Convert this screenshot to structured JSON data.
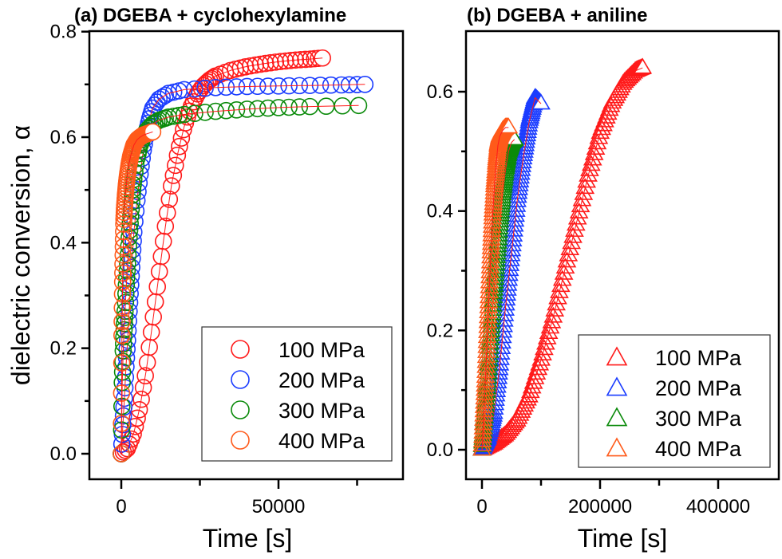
{
  "chart_data": [
    {
      "id": "a",
      "type": "scatter",
      "title": "(a) DGEBA + cyclohexylamine",
      "xlabel": "Time [s]",
      "ylabel": "dielectric conversion, α",
      "xlim": [
        -20000,
        90000
      ],
      "ylim": [
        -0.025,
        0.8
      ],
      "xticks": [
        0,
        50000
      ],
      "xtick_labels": [
        "0",
        "50000"
      ],
      "xminor_ticks": [
        25000,
        75000
      ],
      "yticks": [
        0.0,
        0.2,
        0.4,
        0.6,
        0.8
      ],
      "ytick_labels": [
        "0.0",
        "0.2",
        "0.4",
        "0.6",
        "0.8"
      ],
      "yminor_ticks": [
        0.1,
        0.3,
        0.5,
        0.7
      ],
      "marker": "circle",
      "legend_position": "bottom-right",
      "grid": false,
      "series": [
        {
          "name": "100 MPa",
          "color": "#ff1a1a",
          "x": [
            0,
            2000,
            4000,
            6000,
            8000,
            10000,
            12000,
            14000,
            16000,
            18000,
            20000,
            22000,
            24000,
            26000,
            28000,
            30000,
            35000,
            40000,
            45000,
            50000,
            55000,
            60000,
            64000
          ],
          "y": [
            0.0,
            0.01,
            0.04,
            0.09,
            0.16,
            0.25,
            0.34,
            0.43,
            0.51,
            0.57,
            0.62,
            0.655,
            0.68,
            0.697,
            0.708,
            0.716,
            0.727,
            0.734,
            0.739,
            0.743,
            0.746,
            0.748,
            0.75
          ]
        },
        {
          "name": "200 MPa",
          "color": "#1a3cff",
          "x": [
            0,
            500,
            1000,
            1500,
            2000,
            2500,
            3000,
            3500,
            4000,
            5000,
            6000,
            7000,
            8000,
            9000,
            10000,
            12000,
            15000,
            20000,
            30000,
            40000,
            50000,
            60000,
            70000,
            77500
          ],
          "y": [
            0.0,
            0.055,
            0.105,
            0.165,
            0.215,
            0.27,
            0.32,
            0.37,
            0.42,
            0.48,
            0.53,
            0.575,
            0.61,
            0.635,
            0.655,
            0.672,
            0.683,
            0.69,
            0.694,
            0.696,
            0.697,
            0.698,
            0.699,
            0.7
          ]
        },
        {
          "name": "300 MPa",
          "color": "#0a8a0a",
          "x": [
            0,
            300,
            600,
            900,
            1200,
            1600,
            2000,
            2500,
            3000,
            3500,
            4000,
            5000,
            6000,
            7000,
            8000,
            10000,
            12000,
            15000,
            20000,
            30000,
            40000,
            50000,
            60000,
            75500
          ],
          "y": [
            0.0,
            0.135,
            0.195,
            0.235,
            0.27,
            0.32,
            0.36,
            0.41,
            0.45,
            0.49,
            0.52,
            0.56,
            0.585,
            0.6,
            0.612,
            0.625,
            0.632,
            0.638,
            0.643,
            0.649,
            0.653,
            0.656,
            0.658,
            0.66
          ]
        },
        {
          "name": "400 MPa",
          "color": "#ff5a1a",
          "x": [
            0,
            200,
            400,
            600,
            800,
            1000,
            1300,
            1600,
            2000,
            2500,
            3000,
            3500,
            4000,
            5000,
            6000,
            7000,
            8000,
            9000,
            10000
          ],
          "y": [
            0.0,
            0.22,
            0.32,
            0.385,
            0.44,
            0.465,
            0.49,
            0.51,
            0.53,
            0.55,
            0.565,
            0.575,
            0.585,
            0.595,
            0.6,
            0.604,
            0.606,
            0.608,
            0.61
          ]
        }
      ]
    },
    {
      "id": "b",
      "type": "scatter",
      "title": "(b) DGEBA + aniline",
      "xlabel": "Time [s]",
      "ylabel": "",
      "xlim": [
        -30000,
        500000
      ],
      "ylim": [
        -0.025,
        0.7
      ],
      "xticks": [
        0,
        200000,
        400000
      ],
      "xtick_labels": [
        "0",
        "200000",
        "400000"
      ],
      "xminor_ticks": [
        100000,
        300000
      ],
      "yticks": [
        0.0,
        0.2,
        0.4,
        0.6
      ],
      "ytick_labels": [
        "0.0",
        "0.2",
        "0.4",
        "0.6"
      ],
      "yminor_ticks": [
        0.1,
        0.3,
        0.5
      ],
      "marker": "triangle",
      "legend_position": "bottom-right",
      "grid": false,
      "series": [
        {
          "name": "100 MPa",
          "color": "#ff1a1a",
          "x": [
            0,
            20000,
            40000,
            60000,
            80000,
            100000,
            120000,
            140000,
            160000,
            180000,
            200000,
            220000,
            240000,
            260000,
            272000
          ],
          "y": [
            0.0,
            0.01,
            0.025,
            0.05,
            0.09,
            0.15,
            0.22,
            0.3,
            0.38,
            0.46,
            0.53,
            0.58,
            0.615,
            0.635,
            0.64
          ]
        },
        {
          "name": "200 MPa",
          "color": "#1a3cff",
          "x": [
            0,
            10000,
            20000,
            30000,
            40000,
            50000,
            60000,
            70000,
            80000,
            90000,
            100000
          ],
          "y": [
            0.0,
            0.02,
            0.06,
            0.14,
            0.24,
            0.33,
            0.42,
            0.49,
            0.55,
            0.59,
            0.58
          ]
        },
        {
          "name": "300 MPa",
          "color": "#0a8a0a",
          "x": [
            0,
            5000,
            10000,
            15000,
            20000,
            25000,
            30000,
            35000,
            40000,
            45000,
            50000,
            55000
          ],
          "y": [
            0.0,
            0.06,
            0.12,
            0.19,
            0.26,
            0.32,
            0.38,
            0.43,
            0.47,
            0.5,
            0.515,
            0.52
          ]
        },
        {
          "name": "400 MPa",
          "color": "#ff5a1a",
          "x": [
            0,
            3000,
            6000,
            9000,
            12000,
            15000,
            18000,
            21000,
            24000,
            27000,
            30000,
            35000,
            40000,
            45000
          ],
          "y": [
            0.0,
            0.06,
            0.12,
            0.19,
            0.26,
            0.33,
            0.39,
            0.44,
            0.48,
            0.51,
            0.525,
            0.535,
            0.54,
            0.54
          ]
        }
      ]
    }
  ]
}
